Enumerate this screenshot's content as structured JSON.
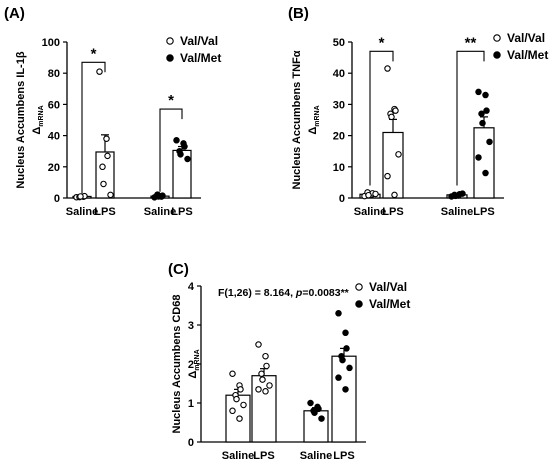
{
  "chart_data": [
    {
      "type": "bar",
      "panel_label": "(A)",
      "ylabel_main": "Nucleus Accumbens IL-1β",
      "ylabel_sub_delta": "Δ",
      "ylabel_sub": "mRNA",
      "yticks": [
        "0",
        "20",
        "40",
        "60",
        "80",
        "100"
      ],
      "ylim": [
        0,
        100
      ],
      "categories": [
        "Saline",
        "LPS",
        "Saline",
        "LPS"
      ],
      "legend": [
        {
          "label": "Val/Val",
          "marker": "open"
        },
        {
          "label": "Val/Met",
          "marker": "filled"
        }
      ],
      "legend_placement": "top-right",
      "series": [
        {
          "name": "Val/Val",
          "marker": "open",
          "bars": [
            1,
            29.5
          ],
          "errors": [
            0.5,
            11
          ],
          "points": [
            [
              0.5,
              0.8,
              1.2,
              0.6,
              1.0
            ],
            [
              81,
              38,
              27,
              20,
              9,
              2
            ]
          ]
        },
        {
          "name": "Val/Met",
          "marker": "filled",
          "bars": [
            1.2,
            30.5
          ],
          "errors": [
            0.4,
            2.5
          ],
          "points": [
            [
              0.4,
              0.9,
              1.5,
              2.2,
              1.0
            ],
            [
              37,
              35,
              33,
              30,
              28,
              25
            ]
          ]
        }
      ],
      "significance": [
        {
          "series": 0,
          "label": "*",
          "top": 87
        },
        {
          "series": 1,
          "label": "*",
          "top": 57
        }
      ]
    },
    {
      "type": "bar",
      "panel_label": "(B)",
      "ylabel_main": "Nucleus Accumbens TNFα",
      "ylabel_sub_delta": "Δ",
      "ylabel_sub": "mRNA",
      "yticks": [
        "0",
        "10",
        "20",
        "30",
        "40",
        "50"
      ],
      "ylim": [
        0,
        50
      ],
      "categories": [
        "Saline",
        "LPS",
        "Saline",
        "LPS"
      ],
      "legend": [
        {
          "label": "Val/Val",
          "marker": "open"
        },
        {
          "label": "Val/Met",
          "marker": "filled"
        }
      ],
      "legend_placement": "top-right",
      "series": [
        {
          "name": "Val/Val",
          "marker": "open",
          "bars": [
            1.2,
            21
          ],
          "errors": [
            0.4,
            4.2
          ],
          "points": [
            [
              0.6,
              1.0,
              1.5,
              1.8,
              0.9,
              1.3
            ],
            [
              41.5,
              28.5,
              28,
              27,
              26,
              14,
              7,
              1
            ]
          ]
        },
        {
          "name": "Val/Met",
          "marker": "filled",
          "bars": [
            1.0,
            22.5
          ],
          "errors": [
            0.3,
            3.5
          ],
          "points": [
            [
              0.5,
              0.8,
              1.2,
              1.0,
              0.7,
              1.4
            ],
            [
              34,
              33,
              28,
              27,
              24,
              18,
              13,
              8
            ]
          ]
        }
      ],
      "significance": [
        {
          "series": 0,
          "label": "*",
          "top": 47
        },
        {
          "series": 1,
          "label": "**",
          "top": 47
        }
      ]
    },
    {
      "type": "bar",
      "panel_label": "(C)",
      "ylabel_main": "Nucleus Accumbens CD68",
      "ylabel_sub_delta": "Δ",
      "ylabel_sub": "mRNA",
      "yticks": [
        "0",
        "1",
        "2",
        "3",
        "4"
      ],
      "ylim": [
        0,
        4
      ],
      "categories": [
        "Saline",
        "LPS",
        "Saline",
        "LPS"
      ],
      "legend": [
        {
          "label": "Val/Val",
          "marker": "open"
        },
        {
          "label": "Val/Met",
          "marker": "filled"
        }
      ],
      "legend_placement": "top-right",
      "stat_pre": "F(1,26) = 8.164, ",
      "stat_p": "p",
      "stat_post": "=0.0083**",
      "series": [
        {
          "name": "Val/Val",
          "marker": "open",
          "bars": [
            1.2,
            1.7
          ],
          "errors": [
            0.15,
            0.18
          ],
          "points": [
            [
              1.75,
              1.45,
              1.35,
              1.2,
              1.1,
              0.95,
              0.8,
              0.6
            ],
            [
              2.5,
              2.2,
              1.95,
              1.75,
              1.6,
              1.45,
              1.35,
              1.3
            ]
          ]
        },
        {
          "name": "Val/Met",
          "marker": "filled",
          "bars": [
            0.8,
            2.2
          ],
          "errors": [
            0.08,
            0.2
          ],
          "points": [
            [
              1.0,
              0.9,
              0.85,
              0.8,
              0.75,
              0.6
            ],
            [
              3.3,
              2.8,
              2.4,
              2.2,
              2.1,
              1.9,
              1.65,
              1.35
            ]
          ]
        }
      ],
      "significance": []
    }
  ]
}
